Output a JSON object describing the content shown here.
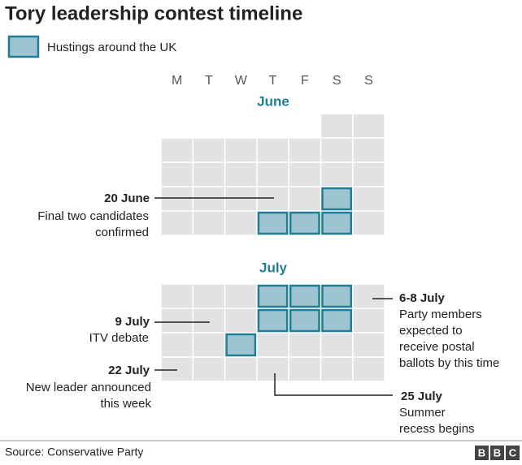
{
  "header": {
    "title": "Tory leadership contest timeline"
  },
  "legend": {
    "label": "Hustings around the UK"
  },
  "calendar": {
    "weekdays": [
      "M",
      "T",
      "W",
      "T",
      "F",
      "S",
      "S"
    ],
    "months": [
      "June",
      "July"
    ]
  },
  "annotations": [
    {
      "date": "20 June",
      "text": [
        "Final two candidates",
        "confirmed"
      ]
    },
    {
      "date": "9 July",
      "text": [
        "ITV debate"
      ]
    },
    {
      "date": "22 July",
      "text": [
        "New leader announced",
        "this week"
      ]
    },
    {
      "date": "6-8 July",
      "text": [
        "Party members",
        "expected to",
        "receive postal",
        "ballots by this time"
      ]
    },
    {
      "date": "25 July",
      "text": [
        "Summer",
        "recess begins"
      ]
    }
  ],
  "footer": {
    "source": "Source: Conservative Party",
    "logo": [
      "B",
      "B",
      "C"
    ]
  }
}
